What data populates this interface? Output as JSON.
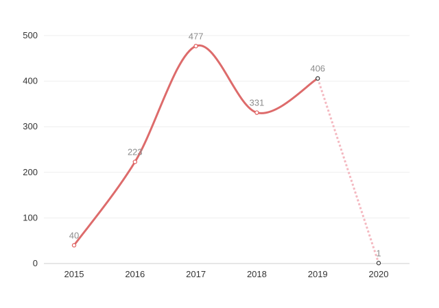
{
  "chart_data": {
    "type": "line",
    "x": [
      "2015",
      "2016",
      "2017",
      "2018",
      "2019",
      "2020"
    ],
    "series": [
      {
        "values": [
          40,
          223,
          477,
          331,
          406,
          1
        ]
      }
    ],
    "data_labels": [
      "40",
      "223",
      "477",
      "331",
      "406",
      "1"
    ],
    "y_ticks": [
      "0",
      "100",
      "200",
      "300",
      "400",
      "500"
    ],
    "ylim": [
      0,
      500
    ],
    "grid": "horizontal",
    "solid_segment_end_index": 4,
    "dashed_last_segment": true,
    "colors": {
      "line": "#dd6b6b",
      "dashed_segment": "#f4b8c0",
      "point_fill": "#ffffff",
      "point_stroke_red": "#e05a5a",
      "point_stroke_dark": "#333333",
      "label": "#8c8c8c",
      "grid": "#eeeeee"
    },
    "title": "",
    "xlabel": "",
    "ylabel": ""
  }
}
